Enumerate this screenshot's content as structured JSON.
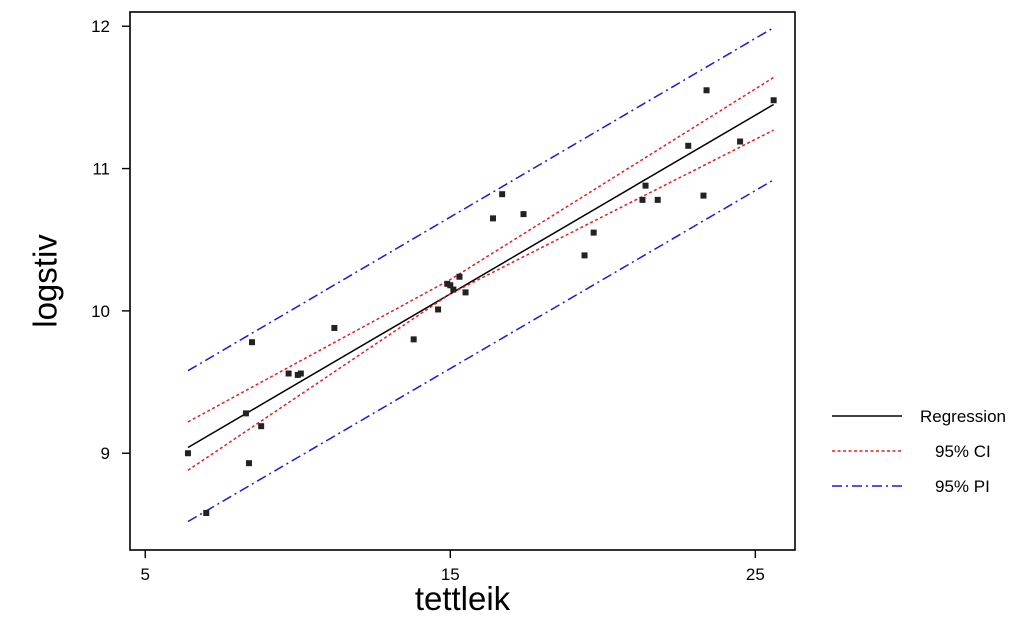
{
  "chart_data": {
    "type": "scatter",
    "title": "",
    "xlabel": "tettleik",
    "ylabel": "logstiv",
    "xlim": [
      4.5,
      26.3
    ],
    "ylim": [
      8.32,
      12.1
    ],
    "xticks": [
      5,
      15,
      25
    ],
    "xtick_labels": [
      "5",
      "15",
      "25"
    ],
    "yticks": [
      9,
      10,
      11,
      12
    ],
    "ytick_labels": [
      "9",
      "10",
      "11",
      "12"
    ],
    "grid": false,
    "legend_position": "right",
    "points": [
      {
        "x": 6.4,
        "y": 9.0
      },
      {
        "x": 7.0,
        "y": 8.58
      },
      {
        "x": 8.3,
        "y": 9.28
      },
      {
        "x": 8.4,
        "y": 8.93
      },
      {
        "x": 8.5,
        "y": 9.78
      },
      {
        "x": 8.8,
        "y": 9.19
      },
      {
        "x": 9.7,
        "y": 9.56
      },
      {
        "x": 10.0,
        "y": 9.55
      },
      {
        "x": 10.1,
        "y": 9.56
      },
      {
        "x": 11.2,
        "y": 9.88
      },
      {
        "x": 13.8,
        "y": 9.8
      },
      {
        "x": 14.6,
        "y": 10.01
      },
      {
        "x": 14.9,
        "y": 10.19
      },
      {
        "x": 15.0,
        "y": 10.18
      },
      {
        "x": 15.1,
        "y": 10.15
      },
      {
        "x": 15.3,
        "y": 10.24
      },
      {
        "x": 15.5,
        "y": 10.13
      },
      {
        "x": 16.4,
        "y": 10.65
      },
      {
        "x": 16.7,
        "y": 10.82
      },
      {
        "x": 17.4,
        "y": 10.68
      },
      {
        "x": 19.4,
        "y": 10.39
      },
      {
        "x": 19.7,
        "y": 10.55
      },
      {
        "x": 21.3,
        "y": 10.78
      },
      {
        "x": 21.4,
        "y": 10.88
      },
      {
        "x": 21.8,
        "y": 10.78
      },
      {
        "x": 22.8,
        "y": 11.16
      },
      {
        "x": 23.3,
        "y": 10.81
      },
      {
        "x": 23.4,
        "y": 11.55
      },
      {
        "x": 24.5,
        "y": 11.19
      },
      {
        "x": 25.6,
        "y": 11.48
      }
    ],
    "series": [
      {
        "name": "Regression",
        "color": "#000000",
        "style": "solid",
        "x": [
          6.4,
          25.6
        ],
        "y": [
          9.04,
          11.45
        ]
      },
      {
        "name": "95% CI",
        "color": "#e02020",
        "style": "dotted",
        "x": [
          6.4,
          15.0,
          25.6
        ],
        "y": [
          9.22,
          10.22,
          11.64
        ]
      },
      {
        "name": "95% CI",
        "color": "#e02020",
        "style": "dotted",
        "x": [
          6.4,
          15.0,
          25.6
        ],
        "y": [
          8.88,
          10.12,
          11.27
        ]
      },
      {
        "name": "95% PI",
        "color": "#1a1ad8",
        "style": "dashdot",
        "x": [
          6.4,
          25.6
        ],
        "y": [
          9.58,
          11.99
        ]
      },
      {
        "name": "95% PI",
        "color": "#1a1ad8",
        "style": "dashdot",
        "x": [
          6.4,
          25.6
        ],
        "y": [
          8.52,
          10.92
        ]
      }
    ],
    "legend": [
      {
        "label": "Regression",
        "color": "#000000",
        "style": "solid"
      },
      {
        "label": "95% CI",
        "color": "#e02020",
        "style": "dotted"
      },
      {
        "label": "95% PI",
        "color": "#1a1ad8",
        "style": "dashdot"
      }
    ]
  }
}
